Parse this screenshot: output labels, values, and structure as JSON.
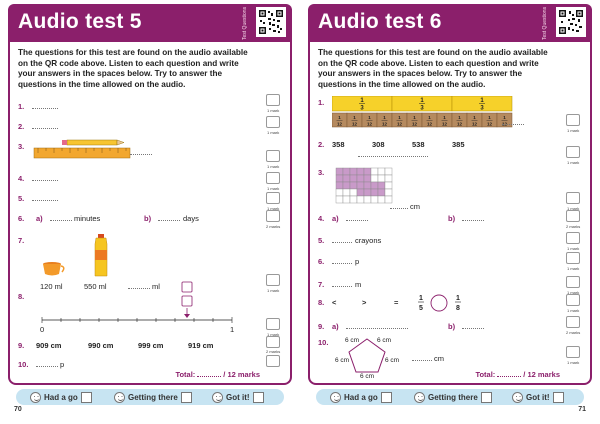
{
  "left": {
    "title": "Audio test 5",
    "side_label": "Test Questions",
    "intro": "The questions for this test are found on the audio available on the QR code above. Listen to each question and write your answers in the spaces below. Try to answer the questions in the time allowed on the audio.",
    "q1": "1.",
    "q2": "2.",
    "q3": "3.",
    "q4": "4.",
    "q5": "5.",
    "q6": "6.",
    "q7": "7.",
    "q8": "8.",
    "q9": "9.",
    "q10": "10.",
    "q6a": "a)",
    "q6a_unit": "minutes",
    "q6b": "b)",
    "q6b_unit": "days",
    "q7_cup": "120 ml",
    "q7_bottle": "550 ml",
    "q7_unit": "ml",
    "q8_start": "0",
    "q8_end": "1",
    "q9_values": [
      "909 cm",
      "990 cm",
      "999 cm",
      "919 cm"
    ],
    "q10_unit": "p",
    "marks": {
      "one": "1 mark",
      "two": "2 marks"
    },
    "total_label": "Total:",
    "total_suffix": "/ 12 marks",
    "page_number": "70"
  },
  "right": {
    "title": "Audio test 6",
    "side_label": "Test Questions",
    "intro": "The questions for this test are found on the audio available on the QR code above. Listen to each question and write your answers in the spaces below. Try to answer the questions in the time allowed on the audio.",
    "q1": "1.",
    "q2": "2.",
    "q3": "3.",
    "q4": "4.",
    "q5": "5.",
    "q6": "6.",
    "q7": "7.",
    "q8": "8.",
    "q9": "9.",
    "q10": "10.",
    "q1_thirds": [
      "1",
      "3"
    ],
    "q1_twelfths": [
      "1",
      "12"
    ],
    "q2_values": [
      "358",
      "308",
      "538",
      "385"
    ],
    "q3_unit": "cm",
    "q4a": "a)",
    "q4b": "b)",
    "q5_unit": "crayons",
    "q6_unit": "p",
    "q7_unit": "m",
    "q8_lt": "<",
    "q8_gt": ">",
    "q8_eq": "=",
    "q8_frac1": [
      "1",
      "5"
    ],
    "q8_frac2": [
      "1",
      "8"
    ],
    "q9a": "a)",
    "q9b": "b)",
    "q10_side": "6 cm",
    "q10_unit": "cm",
    "marks": {
      "one": "1 mark",
      "two": "2 marks"
    },
    "total_label": "Total:",
    "total_suffix": "/ 12 marks",
    "page_number": "71"
  },
  "footer": {
    "had_a_go": "Had a go",
    "getting_there": "Getting there",
    "got_it": "Got it!"
  },
  "colors": {
    "accent": "#8b1f6b",
    "footer_bar": "#c7e4f2",
    "fraction_yellow": "#f6d12a",
    "fraction_brown": "#b58a5f",
    "shape_pink": "#c99ac9"
  }
}
